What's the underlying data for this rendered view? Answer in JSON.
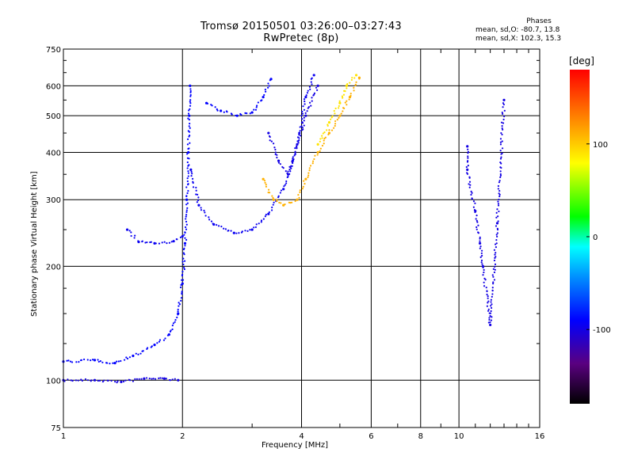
{
  "title": {
    "line1": "Tromsø 20150501 03:26:00–03:27:43",
    "line2": "RwPretec (8p)"
  },
  "phases": {
    "heading": "Phases",
    "line_o": "mean, sd,O: -80.7, 13.8",
    "line_x": "mean, sd,X: 102.3, 15.3"
  },
  "chart_data": {
    "type": "scatter",
    "xlabel": "Frequency [MHz]",
    "ylabel": "Stationary phase Virtual Height [km]",
    "xscale": "log",
    "yscale": "log",
    "xlim": [
      1,
      16
    ],
    "ylim": [
      75,
      750
    ],
    "x_ticks": [
      1,
      2,
      4,
      6,
      8,
      10,
      16
    ],
    "x_tick_labels": [
      "1",
      "2",
      "4",
      "6",
      "8",
      "10",
      "16"
    ],
    "y_ticks": [
      75,
      100,
      200,
      300,
      400,
      500,
      600,
      750
    ],
    "y_tick_labels": [
      "75",
      "100",
      "200",
      "300",
      "400",
      "500",
      "600",
      "750"
    ],
    "grid": true,
    "colorbar": {
      "label": "[deg]",
      "range": [
        -180,
        180
      ],
      "ticks": [
        100,
        0,
        -100
      ],
      "tick_labels": [
        "100",
        "0",
        "-100"
      ]
    },
    "traces": [
      {
        "name": "",
        "color_phase": -100,
        "points": [
          [
            1.0,
            100
          ],
          [
            1.2,
            100
          ],
          [
            1.4,
            99
          ],
          [
            1.6,
            101
          ],
          [
            1.8,
            101
          ],
          [
            1.95,
            100
          ]
        ]
      },
      {
        "name": "",
        "color_phase": -90,
        "points": [
          [
            1.0,
            112
          ],
          [
            1.2,
            113
          ],
          [
            1.35,
            111
          ],
          [
            1.5,
            116
          ],
          [
            1.7,
            124
          ],
          [
            1.85,
            132
          ],
          [
            1.95,
            150
          ],
          [
            2.0,
            180
          ],
          [
            2.03,
            230
          ],
          [
            2.05,
            300
          ],
          [
            2.07,
            400
          ],
          [
            2.08,
            500
          ],
          [
            2.09,
            600
          ]
        ]
      },
      {
        "name": "",
        "color_phase": -95,
        "points": [
          [
            1.45,
            250
          ],
          [
            1.55,
            232
          ],
          [
            1.7,
            230
          ],
          [
            1.9,
            233
          ],
          [
            2.0,
            240
          ]
        ]
      },
      {
        "name": "",
        "color_phase": -95,
        "points": [
          [
            2.1,
            360
          ],
          [
            2.2,
            290
          ],
          [
            2.4,
            258
          ],
          [
            2.7,
            245
          ],
          [
            3.0,
            250
          ],
          [
            3.3,
            275
          ],
          [
            3.6,
            320
          ],
          [
            3.8,
            380
          ],
          [
            3.95,
            450
          ],
          [
            4.1,
            560
          ],
          [
            4.3,
            640
          ]
        ]
      },
      {
        "name": "",
        "color_phase": -90,
        "points": [
          [
            2.3,
            540
          ],
          [
            2.5,
            515
          ],
          [
            2.75,
            500
          ],
          [
            3.0,
            510
          ],
          [
            3.2,
            560
          ],
          [
            3.35,
            625
          ]
        ]
      },
      {
        "name": "",
        "color_phase": -100,
        "points": [
          [
            3.3,
            450
          ],
          [
            3.5,
            380
          ],
          [
            3.7,
            350
          ],
          [
            3.9,
            420
          ],
          [
            4.1,
            500
          ],
          [
            4.4,
            600
          ]
        ]
      },
      {
        "name": "",
        "color_phase": 110,
        "points": [
          [
            3.2,
            340
          ],
          [
            3.4,
            300
          ],
          [
            3.6,
            290
          ],
          [
            3.9,
            300
          ],
          [
            4.1,
            340
          ],
          [
            4.4,
            400
          ],
          [
            4.7,
            450
          ],
          [
            5.0,
            500
          ],
          [
            5.3,
            560
          ],
          [
            5.6,
            630
          ]
        ]
      },
      {
        "name": "",
        "color_phase": 90,
        "points": [
          [
            4.4,
            420
          ],
          [
            4.7,
            480
          ],
          [
            5.0,
            540
          ],
          [
            5.2,
            600
          ],
          [
            5.5,
            640
          ]
        ]
      },
      {
        "name": "",
        "color_phase": -100,
        "points": [
          [
            10.5,
            415
          ],
          [
            10.5,
            360
          ],
          [
            11.0,
            280
          ],
          [
            11.3,
            230
          ],
          [
            11.5,
            200
          ],
          [
            12.0,
            140
          ],
          [
            12.5,
            260
          ],
          [
            13.0,
            550
          ]
        ]
      }
    ]
  }
}
